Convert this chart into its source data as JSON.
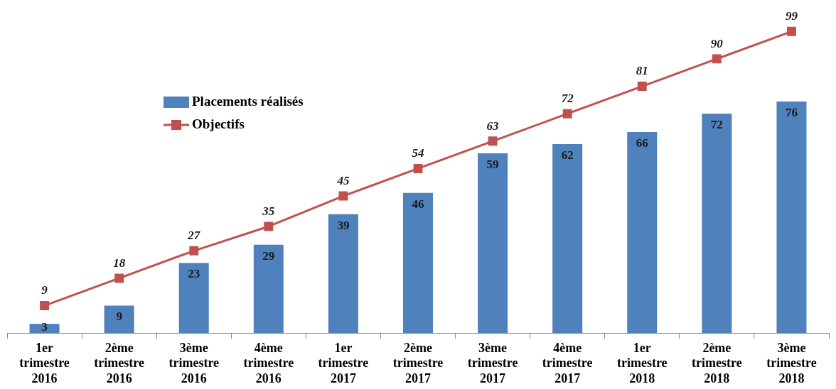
{
  "chart_data": {
    "type": "bar",
    "categories": [
      "1er trimestre 2016",
      "2ème trimestre 2016",
      "3ème trimestre 2016",
      "4ème trimestre 2016",
      "1er trimestre 2017",
      "2ème trimestre 2017",
      "3ème trimestre 2017",
      "4ème trimestre 2017",
      "1er trimestre 2018",
      "2ème trimestre 2018",
      "3ème trimestre 2018"
    ],
    "series": [
      {
        "name": "Placements réalisés",
        "color": "#4f81bd",
        "values": [
          3,
          9,
          23,
          29,
          39,
          46,
          59,
          62,
          66,
          72,
          76
        ]
      },
      {
        "name": "Objectifs",
        "type": "line",
        "color": "#c0504d",
        "marker": "square",
        "values": [
          9,
          18,
          27,
          35,
          45,
          54,
          63,
          72,
          81,
          90,
          99
        ]
      }
    ],
    "data_labels": true,
    "legend": "top left",
    "grid": false
  }
}
